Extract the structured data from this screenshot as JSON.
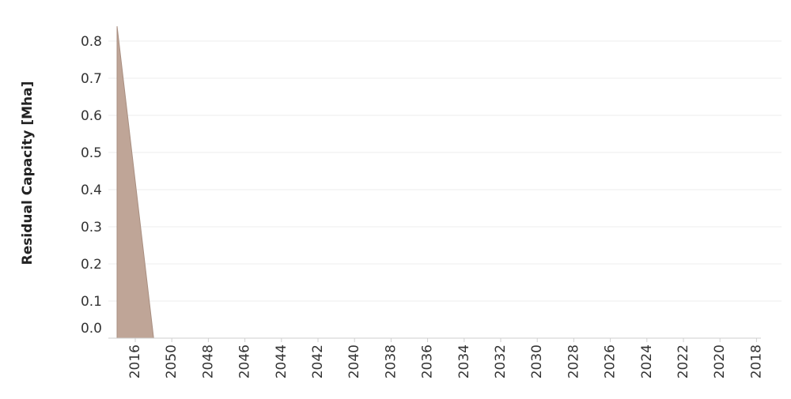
{
  "chart_data": {
    "type": "area",
    "title": "",
    "xlabel": "",
    "ylabel": "Residual Capacity [Mha]",
    "categories": [
      "2016",
      "2050",
      "2048",
      "2046",
      "2044",
      "2042",
      "2040",
      "2038",
      "2036",
      "2034",
      "2032",
      "2030",
      "2028",
      "2026",
      "2024",
      "2022",
      "2020",
      "2018"
    ],
    "series": [
      {
        "values": [
          0.84,
          0,
          0,
          0,
          0,
          0,
          0,
          0,
          0,
          0,
          0,
          0,
          0,
          0,
          0,
          0,
          0,
          0
        ]
      }
    ],
    "y_ticks": [
      "0.8",
      "0.7",
      "0.6",
      "0.5",
      "0.4",
      "0.3",
      "0.2",
      "0.1",
      "0.0"
    ],
    "ylim": [
      0,
      0.84
    ],
    "grid": true,
    "colors": {
      "area_fill": "#bfa597",
      "area_stroke": "#a88e80",
      "grid": "#eeeeee",
      "axis": "#cfcfcf"
    }
  }
}
